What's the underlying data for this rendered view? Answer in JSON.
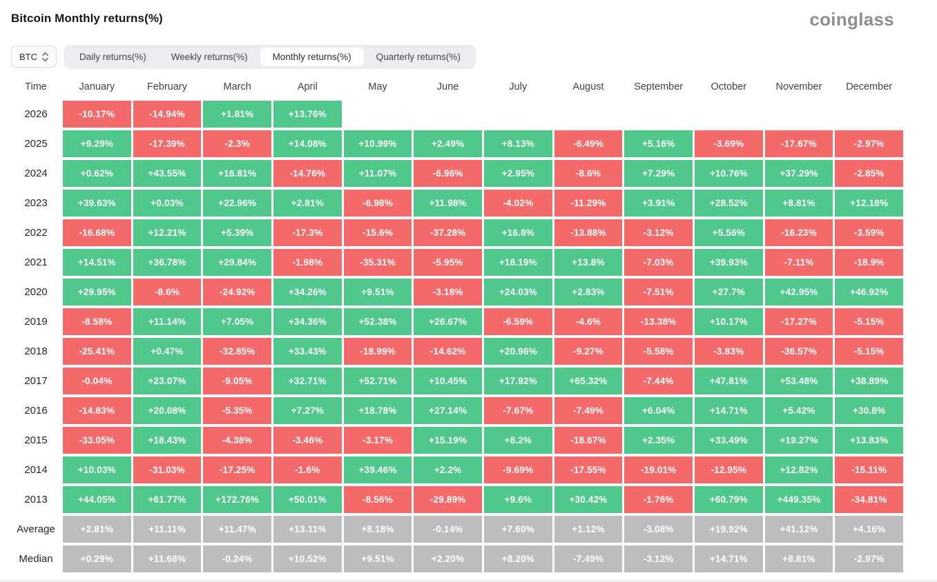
{
  "header": {
    "title": "Bitcoin Monthly returns(%)",
    "logo": "coinglass"
  },
  "controls": {
    "coin_selector": {
      "label": "BTC"
    },
    "tabs": [
      {
        "label": "Daily returns(%)",
        "active": false
      },
      {
        "label": "Weekly returns(%)",
        "active": false
      },
      {
        "label": "Monthly returns(%)",
        "active": true
      },
      {
        "label": "Quarterly returns(%)",
        "active": false
      }
    ]
  },
  "colors": {
    "positive": "#50c88b",
    "negative": "#f46a6a",
    "summary": "#bdbdbd"
  },
  "table": {
    "columns": [
      "Time",
      "January",
      "February",
      "March",
      "April",
      "May",
      "June",
      "July",
      "August",
      "September",
      "October",
      "November",
      "December"
    ],
    "rows": [
      {
        "label": "2026",
        "kind": "year",
        "values": [
          "-10.17%",
          "-14.94%",
          "+1.81%",
          "+13.76%"
        ]
      },
      {
        "label": "2025",
        "kind": "year",
        "values": [
          "+9.29%",
          "-17.39%",
          "-2.3%",
          "+14.08%",
          "+10.99%",
          "+2.49%",
          "+8.13%",
          "-6.49%",
          "+5.16%",
          "-3.69%",
          "-17.67%",
          "-2.97%"
        ]
      },
      {
        "label": "2024",
        "kind": "year",
        "values": [
          "+0.62%",
          "+43.55%",
          "+16.81%",
          "-14.76%",
          "+11.07%",
          "-6.96%",
          "+2.95%",
          "-8.6%",
          "+7.29%",
          "+10.76%",
          "+37.29%",
          "-2.85%"
        ]
      },
      {
        "label": "2023",
        "kind": "year",
        "values": [
          "+39.63%",
          "+0.03%",
          "+22.96%",
          "+2.81%",
          "-6.98%",
          "+11.98%",
          "-4.02%",
          "-11.29%",
          "+3.91%",
          "+28.52%",
          "+8.81%",
          "+12.18%"
        ]
      },
      {
        "label": "2022",
        "kind": "year",
        "values": [
          "-16.68%",
          "+12.21%",
          "+5.39%",
          "-17.3%",
          "-15.6%",
          "-37.28%",
          "+16.8%",
          "-13.88%",
          "-3.12%",
          "+5.56%",
          "-16.23%",
          "-3.59%"
        ]
      },
      {
        "label": "2021",
        "kind": "year",
        "values": [
          "+14.51%",
          "+36.78%",
          "+29.84%",
          "-1.98%",
          "-35.31%",
          "-5.95%",
          "+18.19%",
          "+13.8%",
          "-7.03%",
          "+39.93%",
          "-7.11%",
          "-18.9%"
        ]
      },
      {
        "label": "2020",
        "kind": "year",
        "values": [
          "+29.95%",
          "-8.6%",
          "-24.92%",
          "+34.26%",
          "+9.51%",
          "-3.18%",
          "+24.03%",
          "+2.83%",
          "-7.51%",
          "+27.7%",
          "+42.95%",
          "+46.92%"
        ]
      },
      {
        "label": "2019",
        "kind": "year",
        "values": [
          "-8.58%",
          "+11.14%",
          "+7.05%",
          "+34.36%",
          "+52.38%",
          "+26.67%",
          "-6.59%",
          "-4.6%",
          "-13.38%",
          "+10.17%",
          "-17.27%",
          "-5.15%"
        ]
      },
      {
        "label": "2018",
        "kind": "year",
        "values": [
          "-25.41%",
          "+0.47%",
          "-32.85%",
          "+33.43%",
          "-18.99%",
          "-14.62%",
          "+20.96%",
          "-9.27%",
          "-5.58%",
          "-3.83%",
          "-36.57%",
          "-5.15%"
        ]
      },
      {
        "label": "2017",
        "kind": "year",
        "values": [
          "-0.04%",
          "+23.07%",
          "-9.05%",
          "+32.71%",
          "+52.71%",
          "+10.45%",
          "+17.92%",
          "+65.32%",
          "-7.44%",
          "+47.81%",
          "+53.48%",
          "+38.89%"
        ]
      },
      {
        "label": "2016",
        "kind": "year",
        "values": [
          "-14.83%",
          "+20.08%",
          "-5.35%",
          "+7.27%",
          "+18.78%",
          "+27.14%",
          "-7.67%",
          "-7.49%",
          "+6.04%",
          "+14.71%",
          "+5.42%",
          "+30.8%"
        ]
      },
      {
        "label": "2015",
        "kind": "year",
        "values": [
          "-33.05%",
          "+18.43%",
          "-4.38%",
          "-3.46%",
          "-3.17%",
          "+15.19%",
          "+8.2%",
          "-18.67%",
          "+2.35%",
          "+33.49%",
          "+19.27%",
          "+13.83%"
        ]
      },
      {
        "label": "2014",
        "kind": "year",
        "values": [
          "+10.03%",
          "-31.03%",
          "-17.25%",
          "-1.6%",
          "+39.46%",
          "+2.2%",
          "-9.69%",
          "-17.55%",
          "-19.01%",
          "-12.95%",
          "+12.82%",
          "-15.11%"
        ]
      },
      {
        "label": "2013",
        "kind": "year",
        "values": [
          "+44.05%",
          "+61.77%",
          "+172.76%",
          "+50.01%",
          "-8.56%",
          "-29.89%",
          "+9.6%",
          "+30.42%",
          "-1.76%",
          "+60.79%",
          "+449.35%",
          "-34.81%"
        ]
      },
      {
        "label": "Average",
        "kind": "summary",
        "values": [
          "+2.81%",
          "+11.11%",
          "+11.47%",
          "+13.11%",
          "+8.18%",
          "-0.14%",
          "+7.60%",
          "+1.12%",
          "-3.08%",
          "+19.92%",
          "+41.12%",
          "+4.16%"
        ]
      },
      {
        "label": "Median",
        "kind": "summary",
        "values": [
          "+0.29%",
          "+11.68%",
          "-0.24%",
          "+10.52%",
          "+9.51%",
          "+2.20%",
          "+8.20%",
          "-7.49%",
          "-3.12%",
          "+14.71%",
          "+8.81%",
          "-2.97%"
        ]
      }
    ]
  }
}
